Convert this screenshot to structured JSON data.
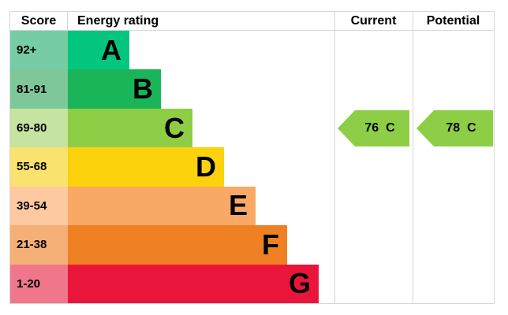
{
  "header": {
    "score": "Score",
    "energy_rating": "Energy rating",
    "current": "Current",
    "potential": "Potential"
  },
  "bands": [
    {
      "score": "92+",
      "letter": "A",
      "bar_color": "#04c57e",
      "score_color": "#76cda3"
    },
    {
      "score": "81-91",
      "letter": "B",
      "bar_color": "#1ab459",
      "score_color": "#7ec79a"
    },
    {
      "score": "69-80",
      "letter": "C",
      "bar_color": "#8dce46",
      "score_color": "#c6e3a2"
    },
    {
      "score": "55-68",
      "letter": "D",
      "bar_color": "#fcd20c",
      "score_color": "#fae26e"
    },
    {
      "score": "39-54",
      "letter": "E",
      "bar_color": "#faa865",
      "score_color": "#fcc9a0"
    },
    {
      "score": "21-38",
      "letter": "F",
      "bar_color": "#ef8023",
      "score_color": "#f4b077"
    },
    {
      "score": "1-20",
      "letter": "G",
      "bar_color": "#e9153b",
      "score_color": "#f0778b"
    }
  ],
  "current": {
    "value": "76",
    "band": "C",
    "arrow_color": "#8dce46"
  },
  "potential": {
    "value": "78",
    "band": "C",
    "arrow_color": "#8dce46"
  },
  "chart_data": {
    "type": "bar",
    "title": "Energy rating",
    "categories": [
      "A",
      "B",
      "C",
      "D",
      "E",
      "F",
      "G"
    ],
    "score_ranges": [
      "92+",
      "81-91",
      "69-80",
      "55-68",
      "39-54",
      "21-38",
      "1-20"
    ],
    "columns": [
      "Score",
      "Energy rating",
      "Current",
      "Potential"
    ],
    "current_rating": {
      "value": 76,
      "band": "C"
    },
    "potential_rating": {
      "value": 78,
      "band": "C"
    },
    "band_colors": [
      "#04c57e",
      "#1ab459",
      "#8dce46",
      "#fcd20c",
      "#faa865",
      "#ef8023",
      "#e9153b"
    ],
    "legend_position": "none",
    "grid": false
  }
}
